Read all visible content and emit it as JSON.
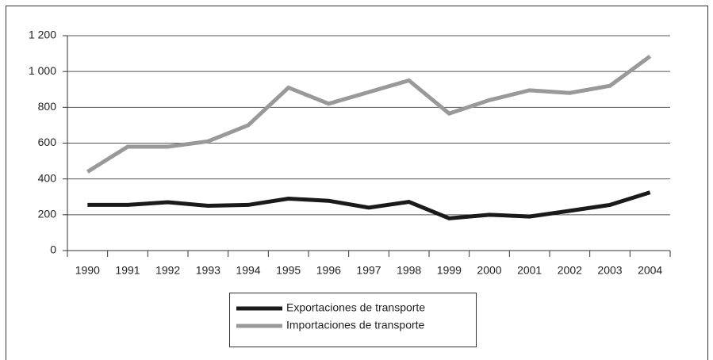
{
  "chart_data": {
    "type": "line",
    "categories": [
      "1990",
      "1991",
      "1992",
      "1993",
      "1994",
      "1995",
      "1996",
      "1997",
      "1998",
      "1999",
      "2000",
      "2001",
      "2002",
      "2003",
      "2004"
    ],
    "series": [
      {
        "name": "Exportaciones de transporte",
        "color": "#1a1a1a",
        "values": [
          255,
          255,
          270,
          250,
          255,
          290,
          278,
          240,
          272,
          180,
          200,
          190,
          222,
          255,
          325
        ]
      },
      {
        "name": "Importaciones de transporte",
        "color": "#999999",
        "values": [
          440,
          580,
          580,
          610,
          700,
          910,
          820,
          885,
          950,
          765,
          840,
          895,
          880,
          920,
          1085
        ]
      }
    ],
    "ylim": [
      0,
      1200
    ],
    "yticks": [
      0,
      200,
      400,
      600,
      800,
      {
        "value": 1000,
        "label": "1 000"
      },
      {
        "value": 1200,
        "label": "1 200"
      }
    ],
    "grid": true,
    "legend": "bottom"
  }
}
